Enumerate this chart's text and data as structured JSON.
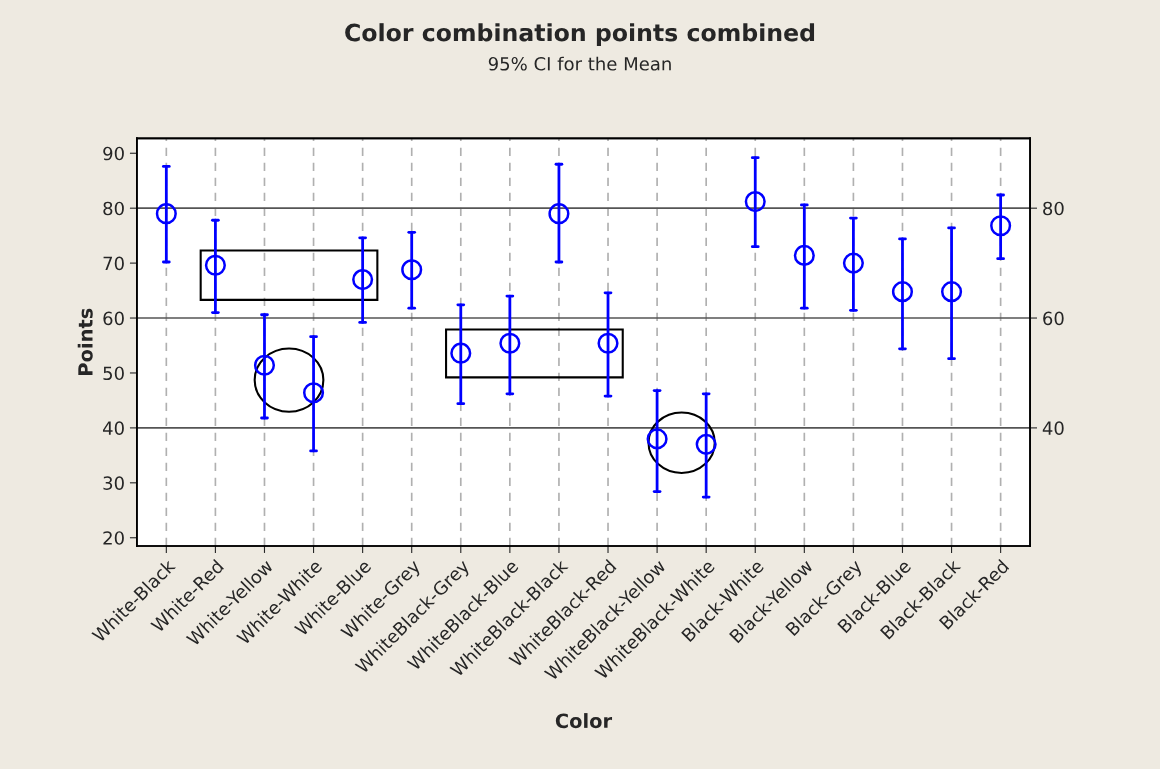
{
  "chart_data": {
    "type": "scatter",
    "title": "Color combination points combined",
    "subtitle": "95% CI for the Mean",
    "xlabel": "Color",
    "ylabel": "Points",
    "categories": [
      "White-Black",
      "White-Red",
      "White-Yellow",
      "White-White",
      "White-Blue",
      "White-Grey",
      "WhiteBlack-Grey",
      "WhiteBlack-Blue",
      "WhiteBlack-Black",
      "WhiteBlack-Red",
      "WhiteBlack-Yellow",
      "WhiteBlack-White",
      "Black-White",
      "Black-Yellow",
      "Black-Grey",
      "Black-Blue",
      "Black-Black",
      "Black-Red"
    ],
    "series": [
      {
        "color": "#0000ff",
        "values": [
          79,
          69.6,
          51.4,
          46.4,
          67,
          68.8,
          53.6,
          55.4,
          79,
          55.4,
          38,
          37,
          81.2,
          71.4,
          70,
          64.8,
          64.8,
          76.8
        ],
        "errors": [
          [
            70.2,
            87.6
          ],
          [
            61,
            77.8
          ],
          [
            41.8,
            60.6
          ],
          [
            35.8,
            56.6
          ],
          [
            59.2,
            74.6
          ],
          [
            61.8,
            75.6
          ],
          [
            44.4,
            62.4
          ],
          [
            46.2,
            64
          ],
          [
            70.2,
            88
          ],
          [
            45.8,
            64.6
          ],
          [
            28.4,
            46.8
          ],
          [
            27.4,
            46.2
          ],
          [
            73,
            89.2
          ],
          [
            61.8,
            80.6
          ],
          [
            61.4,
            78.2
          ],
          [
            54.4,
            74.4
          ],
          [
            52.6,
            76.4
          ],
          [
            70.8,
            82.4
          ]
        ]
      }
    ],
    "ylim": [
      18.5,
      92.7
    ],
    "yticks": [
      20,
      30,
      40,
      50,
      60,
      70,
      80,
      90
    ],
    "y2lim": [
      18.5,
      92.7
    ],
    "y2ticks": [
      40,
      60,
      80
    ],
    "grid": true,
    "marker": "circle",
    "legend": false
  }
}
